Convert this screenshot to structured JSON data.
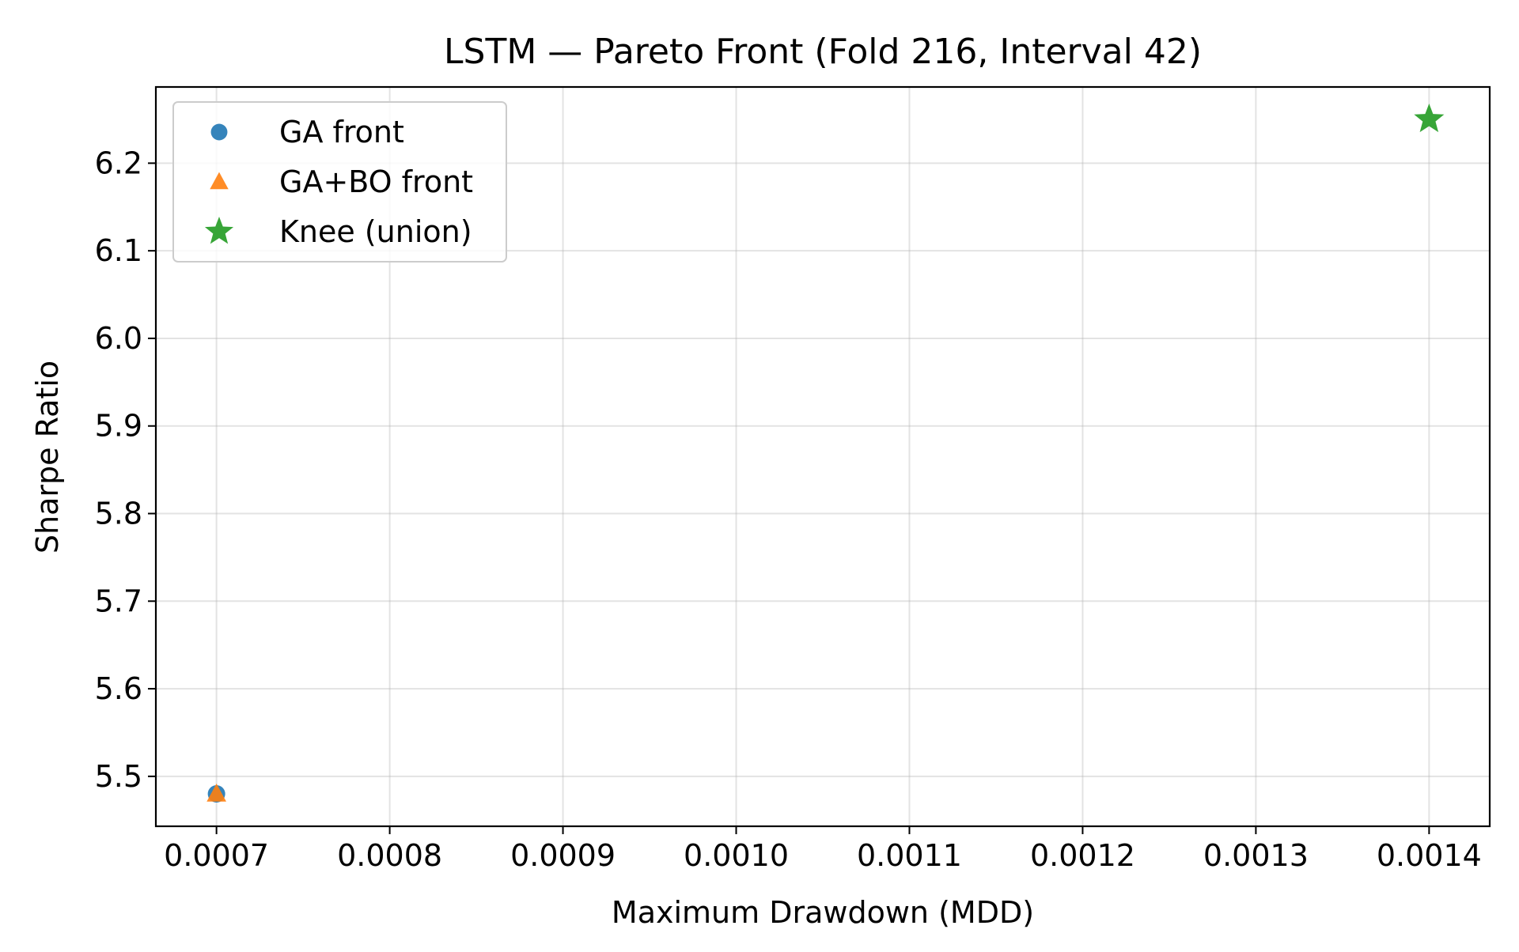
{
  "chart_data": {
    "type": "scatter",
    "title": "LSTM — Pareto Front (Fold 216, Interval 42)",
    "xlabel": "Maximum Drawdown (MDD)",
    "ylabel": "Sharpe Ratio",
    "xlim": [
      0.000665,
      0.001435
    ],
    "ylim": [
      5.443,
      6.287
    ],
    "x_ticks": [
      "0.0007",
      "0.0008",
      "0.0009",
      "0.0010",
      "0.0011",
      "0.0012",
      "0.0013",
      "0.0014"
    ],
    "x_tick_values": [
      0.0007,
      0.0008,
      0.0009,
      0.001,
      0.0011,
      0.0012,
      0.0013,
      0.0014
    ],
    "y_ticks": [
      "5.5",
      "5.6",
      "5.7",
      "5.8",
      "5.9",
      "6.0",
      "6.1",
      "6.2"
    ],
    "y_tick_values": [
      5.5,
      5.6,
      5.7,
      5.8,
      5.9,
      6.0,
      6.1,
      6.2
    ],
    "grid": true,
    "legend_position": "top-left",
    "series": [
      {
        "name": "GA front",
        "marker": "circle",
        "color": "#1f77b4",
        "points": [
          {
            "x": 0.0007,
            "y": 5.48
          }
        ]
      },
      {
        "name": "GA+BO front",
        "marker": "triangle",
        "color": "#ff7f0e",
        "points": [
          {
            "x": 0.0007,
            "y": 5.48
          }
        ]
      },
      {
        "name": "Knee (union)",
        "marker": "star",
        "color": "#2ca02c",
        "points": [
          {
            "x": 0.0014,
            "y": 6.25
          }
        ]
      }
    ]
  }
}
